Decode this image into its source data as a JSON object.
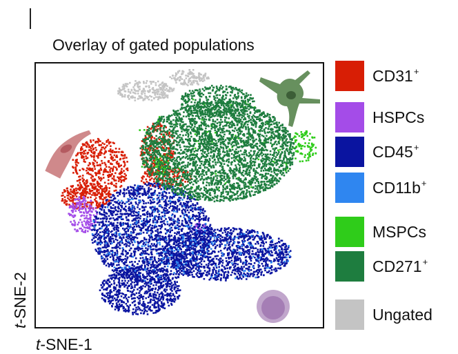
{
  "title": "Overlay of gated populations",
  "x_label_italic": "t",
  "x_label_rest": "-SNE-1",
  "y_label_italic": "t",
  "y_label_rest": "-SNE-2",
  "legend": [
    {
      "name": "CD31",
      "sup": "+",
      "color": "#d81e05"
    },
    {
      "name": "HSPCs",
      "sup": "",
      "color": "#a44ce8"
    },
    {
      "name": "CD45",
      "sup": "+",
      "color": "#0a14a0"
    },
    {
      "name": "CD11b",
      "sup": "+",
      "color": "#2f86f0"
    },
    {
      "name": "MSPCs",
      "sup": "",
      "color": "#2fcc1a"
    },
    {
      "name": "CD271",
      "sup": "+",
      "color": "#1e7d3f"
    },
    {
      "name": "Ungated",
      "sup": "",
      "color": "#c4c4c4"
    }
  ],
  "icons": {
    "endothelial_cell_icon": {
      "color": "#c77477"
    },
    "stromal_cell_icon": {
      "color": "#5f8a55"
    },
    "blood_cell_icon": {
      "color": "#8e5ca3"
    }
  },
  "chart_data": {
    "type": "scatter",
    "title": "Overlay of gated populations",
    "xlabel": "t-SNE-1",
    "ylabel": "t-SNE-2",
    "axes_ticks": "none",
    "grid": false,
    "legend_position": "right",
    "series": [
      {
        "name": "CD31+",
        "color": "#d81e05",
        "clusters": [
          {
            "cx": 0.22,
            "cy": 0.61,
            "rx": 0.1,
            "ry": 0.11,
            "n": 420
          },
          {
            "cx": 0.17,
            "cy": 0.5,
            "rx": 0.09,
            "ry": 0.05,
            "n": 260
          },
          {
            "cx": 0.42,
            "cy": 0.68,
            "rx": 0.06,
            "ry": 0.1,
            "n": 240
          },
          {
            "cx": 0.45,
            "cy": 0.57,
            "rx": 0.09,
            "ry": 0.04,
            "n": 160
          }
        ]
      },
      {
        "name": "HSPCs",
        "color": "#a44ce8",
        "clusters": [
          {
            "cx": 0.16,
            "cy": 0.43,
            "rx": 0.05,
            "ry": 0.07,
            "n": 170
          },
          {
            "cx": 0.57,
            "cy": 0.38,
            "rx": 0.03,
            "ry": 0.02,
            "n": 20
          }
        ]
      },
      {
        "name": "CD45+",
        "color": "#0a14a0",
        "clusters": [
          {
            "cx": 0.4,
            "cy": 0.36,
            "rx": 0.21,
            "ry": 0.19,
            "n": 2000
          },
          {
            "cx": 0.66,
            "cy": 0.28,
            "rx": 0.23,
            "ry": 0.1,
            "n": 1200
          },
          {
            "cx": 0.36,
            "cy": 0.14,
            "rx": 0.14,
            "ry": 0.09,
            "n": 700
          }
        ]
      },
      {
        "name": "CD11b+",
        "color": "#2f86f0",
        "clusters": [
          {
            "cx": 0.4,
            "cy": 0.36,
            "rx": 0.21,
            "ry": 0.19,
            "n": 180
          },
          {
            "cx": 0.66,
            "cy": 0.28,
            "rx": 0.23,
            "ry": 0.1,
            "n": 100
          }
        ]
      },
      {
        "name": "MSPCs",
        "color": "#2fcc1a",
        "clusters": [
          {
            "cx": 0.93,
            "cy": 0.69,
            "rx": 0.05,
            "ry": 0.06,
            "n": 90
          },
          {
            "cx": 0.44,
            "cy": 0.62,
            "rx": 0.03,
            "ry": 0.04,
            "n": 50
          },
          {
            "cx": 0.62,
            "cy": 0.68,
            "rx": 0.28,
            "ry": 0.2,
            "n": 90
          }
        ]
      },
      {
        "name": "CD271+",
        "color": "#1e7d3f",
        "clusters": [
          {
            "cx": 0.63,
            "cy": 0.67,
            "rx": 0.27,
            "ry": 0.19,
            "n": 3000
          },
          {
            "cx": 0.63,
            "cy": 0.86,
            "rx": 0.13,
            "ry": 0.06,
            "n": 350
          }
        ]
      },
      {
        "name": "Ungated",
        "color": "#c4c4c4",
        "clusters": [
          {
            "cx": 0.38,
            "cy": 0.9,
            "rx": 0.1,
            "ry": 0.04,
            "n": 220
          },
          {
            "cx": 0.53,
            "cy": 0.95,
            "rx": 0.07,
            "ry": 0.03,
            "n": 120
          }
        ]
      }
    ]
  }
}
